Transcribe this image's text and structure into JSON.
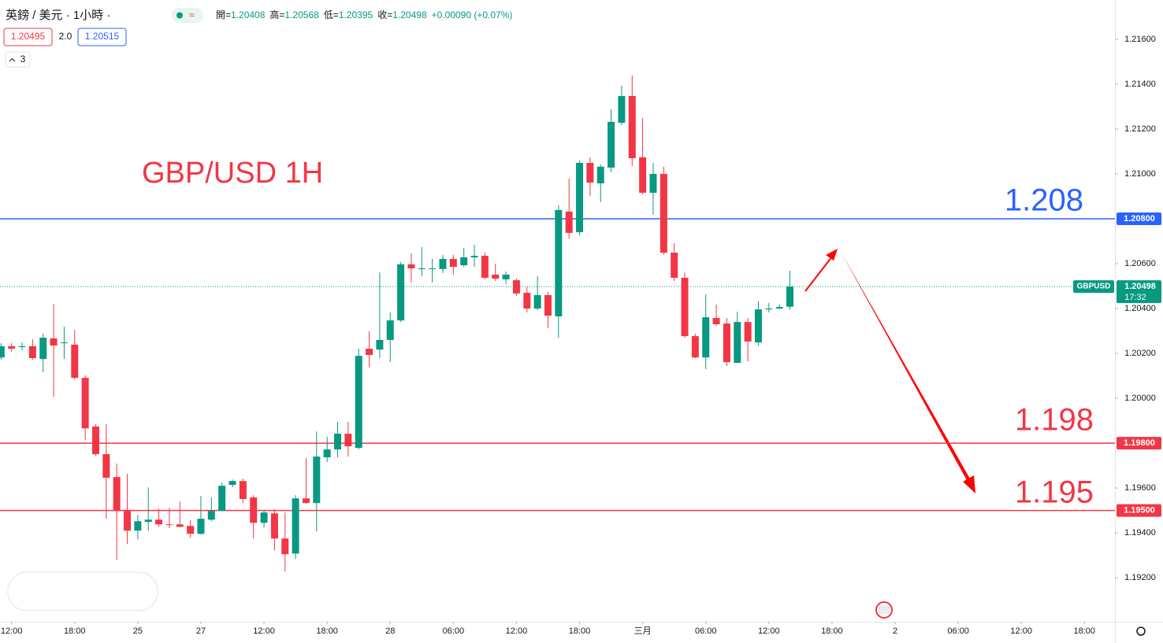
{
  "chart_data": {
    "type": "candlestick",
    "title": "英鎊 / 美元 · 1小時 ·",
    "quote": [
      {
        "label": "開=",
        "value": "1.20408"
      },
      {
        "label": "高=",
        "value": "1.20568"
      },
      {
        "label": "低=",
        "value": "1.20395"
      },
      {
        "label": "收=",
        "value": "1.20498"
      }
    ],
    "change": "+0.00090 (+0.07%)",
    "bid": "1.20495",
    "spread": "2.0",
    "ask": "1.20515",
    "indicators": "3",
    "up_color": "#089981",
    "down_color": "#f23645",
    "open": [
      1.20182,
      1.20232,
      1.20228,
      1.20232,
      1.20175,
      1.20267,
      1.20246,
      1.20239,
      1.20091,
      1.19874,
      1.19751,
      1.19649,
      1.19498,
      1.1941,
      1.19449,
      1.19459,
      1.19438,
      1.19438,
      1.19431,
      1.19396,
      1.19459,
      1.19498,
      1.19614,
      1.19631,
      1.19558,
      1.19445,
      1.19487,
      1.19375,
      1.19308,
      1.19554,
      1.19533,
      1.19737,
      1.19772,
      1.19842,
      1.19779,
      1.20221,
      1.20217,
      1.2026,
      1.20347,
      1.20597,
      1.20576,
      1.20576,
      1.20576,
      1.20621,
      1.20593,
      1.20628,
      1.20635,
      1.20551,
      1.2053,
      1.20526,
      1.2047,
      1.204,
      1.2046,
      1.20365,
      1.20832,
      1.2074,
      1.21049,
      1.20958,
      1.21028,
      1.21228,
      1.21347,
      1.21074,
      1.20916,
      1.21,
      1.20649,
      1.20537,
      1.20277,
      1.20182,
      1.20358,
      1.20333,
      1.20158,
      1.2034,
      1.20249,
      1.20396,
      1.204,
      1.20408
    ],
    "high": [
      1.20246,
      1.20246,
      1.20249,
      1.20263,
      1.20288,
      1.20421,
      1.20319,
      1.20305,
      1.20102,
      1.19884,
      1.19884,
      1.19709,
      1.19663,
      1.1948,
      1.19603,
      1.19508,
      1.19512,
      1.1954,
      1.19456,
      1.19565,
      1.19558,
      1.19624,
      1.19638,
      1.19642,
      1.19568,
      1.19498,
      1.19505,
      1.19491,
      1.19568,
      1.19733,
      1.19852,
      1.19828,
      1.19895,
      1.19895,
      1.20221,
      1.20298,
      1.20561,
      1.20382,
      1.20607,
      1.20646,
      1.20674,
      1.20621,
      1.20639,
      1.20639,
      1.2067,
      1.20684,
      1.20649,
      1.206,
      1.20565,
      1.20533,
      1.20495,
      1.20544,
      1.20474,
      1.2086,
      1.20979,
      1.2106,
      1.21074,
      1.21042,
      1.21288,
      1.21393,
      1.21439,
      1.21249,
      1.21049,
      1.21032,
      1.20691,
      1.20561,
      1.20288,
      1.20463,
      1.20418,
      1.20358,
      1.20386,
      1.20358,
      1.20432,
      1.20425,
      1.20418,
      1.20568
    ],
    "low": [
      1.20172,
      1.20207,
      1.20214,
      1.20172,
      1.20116,
      1.20007,
      1.20175,
      1.20084,
      1.19814,
      1.19744,
      1.19463,
      1.1928,
      1.1935,
      1.19371,
      1.1941,
      1.19427,
      1.19421,
      1.19424,
      1.19379,
      1.19392,
      1.19452,
      1.19498,
      1.19603,
      1.19533,
      1.19375,
      1.19424,
      1.19322,
      1.19228,
      1.19284,
      1.1953,
      1.19407,
      1.19716,
      1.19737,
      1.1974,
      1.19772,
      1.20137,
      1.20179,
      1.20161,
      1.2034,
      1.20516,
      1.20544,
      1.20516,
      1.20558,
      1.20551,
      1.20586,
      1.20586,
      1.2053,
      1.20523,
      1.20509,
      1.20456,
      1.20382,
      1.20393,
      1.20312,
      1.2027,
      1.20712,
      1.20726,
      1.20902,
      1.20874,
      1.21007,
      1.21218,
      1.21035,
      1.20909,
      1.20818,
      1.20639,
      1.20523,
      1.2027,
      1.20179,
      1.2013,
      1.20323,
      1.20144,
      1.20158,
      1.20165,
      1.20235,
      1.20382,
      1.20396,
      1.20395
    ],
    "close": [
      1.20232,
      1.20221,
      1.20232,
      1.20179,
      1.2027,
      1.20235,
      1.20249,
      1.20091,
      1.19866,
      1.19751,
      1.19646,
      1.19498,
      1.1941,
      1.19452,
      1.19459,
      1.19438,
      1.19435,
      1.19427,
      1.19396,
      1.19463,
      1.19498,
      1.1961,
      1.19631,
      1.19551,
      1.19445,
      1.19491,
      1.19375,
      1.19305,
      1.19554,
      1.19533,
      1.1974,
      1.19772,
      1.19842,
      1.19786,
      1.20189,
      1.20193,
      1.2026,
      1.20347,
      1.20597,
      1.20579,
      1.20579,
      1.20579,
      1.20621,
      1.20586,
      1.20628,
      1.20635,
      1.20537,
      1.20533,
      1.20551,
      1.20467,
      1.204,
      1.2046,
      1.20368,
      1.20839,
      1.20737,
      1.21049,
      1.20961,
      1.21032,
      1.21232,
      1.21347,
      1.2107,
      1.20916,
      1.21,
      1.20649,
      1.20537,
      1.20277,
      1.20182,
      1.20361,
      1.2033,
      1.20161,
      1.2034,
      1.20253,
      1.20396,
      1.204,
      1.20407,
      1.20498
    ],
    "ylim": [
      1.19004,
      1.21775
    ],
    "yticks": [
      {
        "value": 1.216,
        "label": "1.21600"
      },
      {
        "value": 1.214,
        "label": "1.21400"
      },
      {
        "value": 1.212,
        "label": "1.21200"
      },
      {
        "value": 1.21,
        "label": "1.21000"
      },
      {
        "value": 1.206,
        "label": "1.20600"
      },
      {
        "value": 1.204,
        "label": "1.20400"
      },
      {
        "value": 1.202,
        "label": "1.20200"
      },
      {
        "value": 1.2,
        "label": "1.20000"
      },
      {
        "value": 1.196,
        "label": "1.19600"
      },
      {
        "value": 1.194,
        "label": "1.19400"
      },
      {
        "value": 1.192,
        "label": "1.19200"
      }
    ],
    "xlim": [
      -0.1,
      105.9
    ],
    "xticks": [
      {
        "value": 1,
        "label": "12:00"
      },
      {
        "value": 7,
        "label": "18:00"
      },
      {
        "value": 13,
        "label": "25"
      },
      {
        "value": 19,
        "label": "27"
      },
      {
        "value": 25,
        "label": "12:00"
      },
      {
        "value": 31,
        "label": "18:00"
      },
      {
        "value": 37,
        "label": "28"
      },
      {
        "value": 43,
        "label": "06:00"
      },
      {
        "value": 49,
        "label": "12:00"
      },
      {
        "value": 55,
        "label": "18:00"
      },
      {
        "value": 61,
        "label": "三月"
      },
      {
        "value": 67,
        "label": "06:00"
      },
      {
        "value": 73,
        "label": "12:00"
      },
      {
        "value": 79,
        "label": "18:00"
      },
      {
        "value": 85,
        "label": "2"
      },
      {
        "value": 91,
        "label": "06:00"
      },
      {
        "value": 97,
        "label": "12:00"
      },
      {
        "value": 103,
        "label": "18:00"
      }
    ],
    "hlines": [
      {
        "value": 1.208,
        "label": "1.20800",
        "color": "#2962ff"
      },
      {
        "value": 1.198,
        "label": "1.19800",
        "color": "#f23645"
      },
      {
        "value": 1.195,
        "label": "1.19500",
        "color": "#f23645"
      }
    ],
    "annotations": [
      {
        "text": "GBP/USD 1H",
        "color": "#f23645"
      },
      {
        "text": "1.208",
        "color": "#2962ff"
      },
      {
        "text": "1.198",
        "color": "#f23645"
      },
      {
        "text": "1.195",
        "color": "#f23645"
      }
    ],
    "last_price": {
      "symbol": "GBPUSD",
      "value": 1.20498,
      "countdown": "17:32"
    },
    "grid": false
  }
}
